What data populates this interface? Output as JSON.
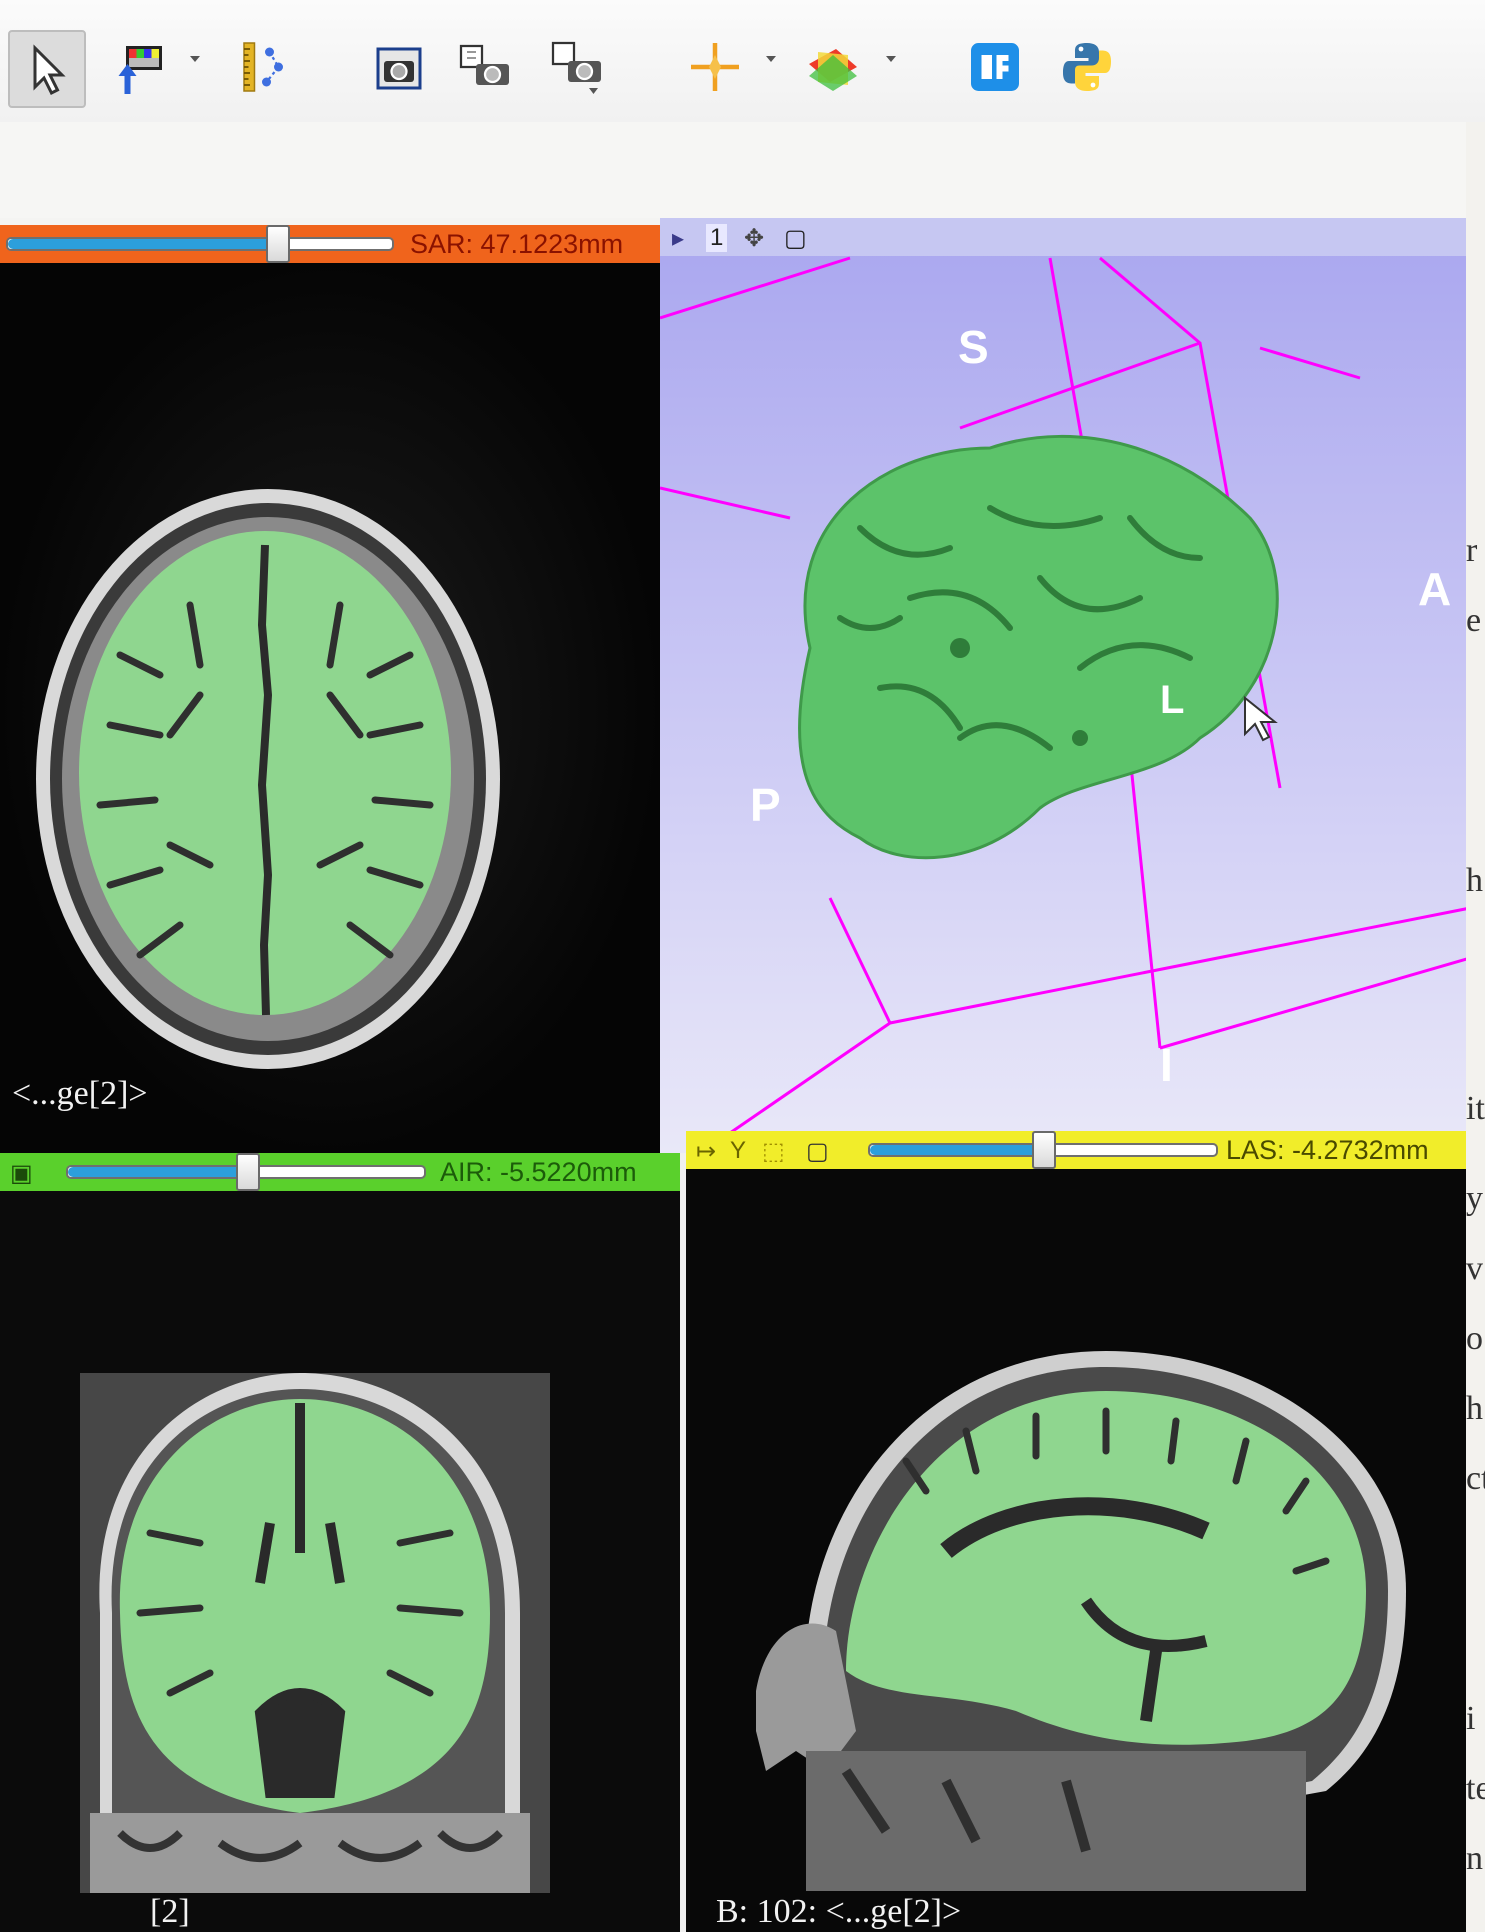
{
  "toolbar": {
    "buttons": [
      {
        "name": "mouse-pointer-icon",
        "dropdown": false
      },
      {
        "name": "color-data-probe-icon",
        "dropdown": true
      },
      {
        "name": "ruler-markups-icon",
        "dropdown": false
      },
      {
        "name": "screenshot-camera-icon",
        "dropdown": false
      },
      {
        "name": "scene-view-camera-icon",
        "dropdown": false
      },
      {
        "name": "scene-view-camera-list-icon",
        "dropdown": false
      },
      {
        "name": "crosshair-icon",
        "dropdown": true
      },
      {
        "name": "slice-intersection-icon",
        "dropdown": true
      },
      {
        "name": "extensions-manager-icon",
        "dropdown": false
      },
      {
        "name": "python-console-icon",
        "dropdown": false
      }
    ]
  },
  "views": {
    "red": {
      "offset_label": "SAR: 47.1223mm",
      "slider_fraction": 0.69,
      "color": "#f0641c",
      "bottom_left": "<...ge[2]>"
    },
    "three_d": {
      "view_number": "1",
      "color": "#9f9ff5",
      "orient_labels": {
        "superior": "S",
        "anterior": "A",
        "posterior": "P",
        "inferior": "I",
        "left": "L"
      }
    },
    "green": {
      "offset_label": "AIR: -5.5220mm",
      "slider_fraction": 0.49,
      "color": "#5ad02c",
      "bottom_left": "[2]"
    },
    "yellow": {
      "view_letter": "Y",
      "offset_label": "LAS: -4.2732mm",
      "slider_fraction": 0.49,
      "color": "#f1ed2a",
      "bottom_left": "B: 102: <...ge[2]>"
    }
  },
  "side_fragments": [
    "r",
    "e",
    "h",
    "it",
    "y",
    "v",
    "o",
    "h",
    "ct",
    "i",
    "te",
    "n"
  ],
  "colors": {
    "segmentation": "#8fd68f",
    "surface": "#5cc36a",
    "bounding_box": "#ff00ff"
  }
}
